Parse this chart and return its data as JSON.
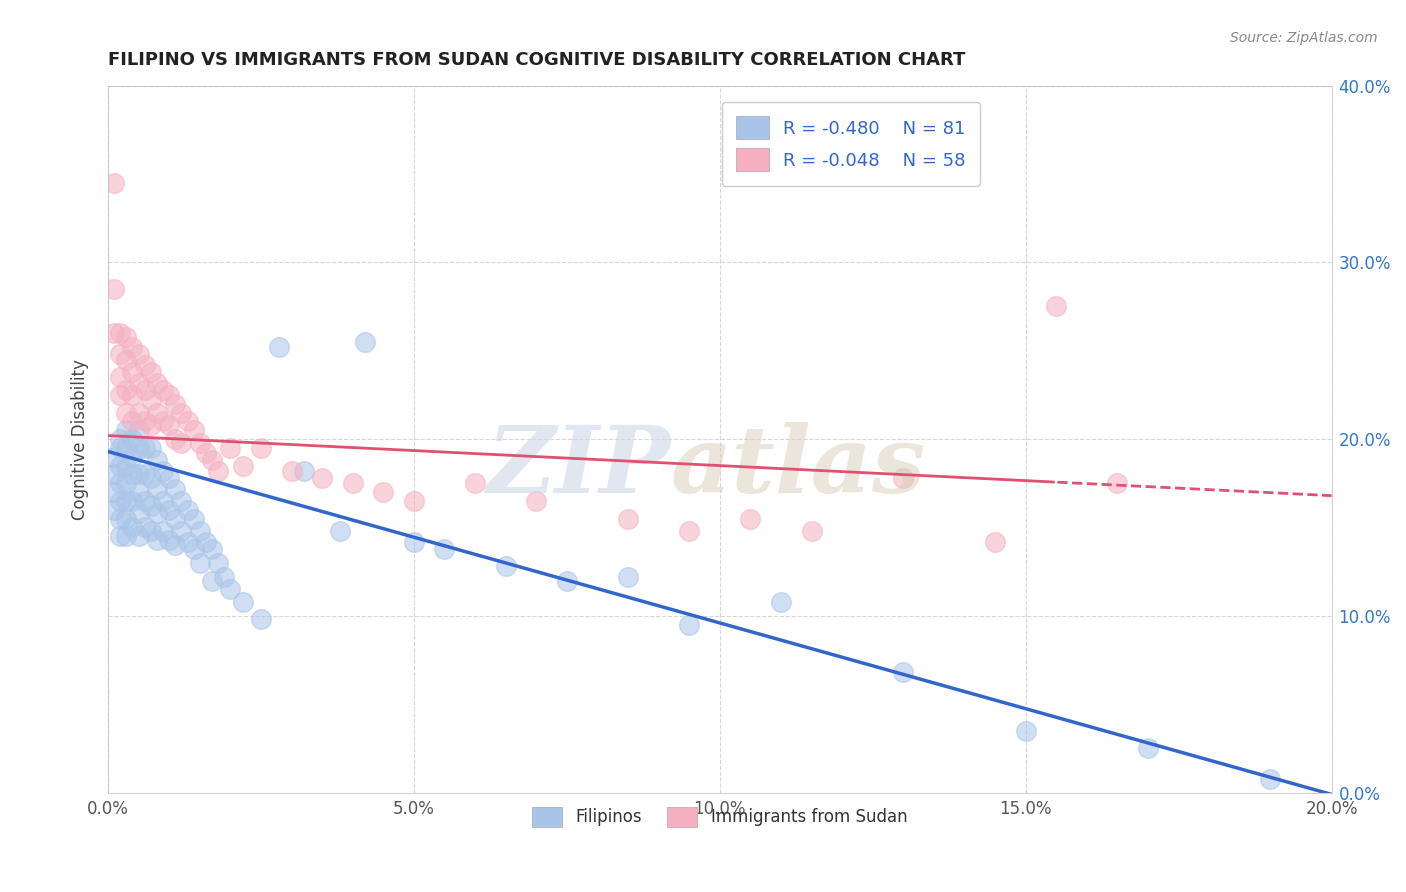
{
  "title": "FILIPINO VS IMMIGRANTS FROM SUDAN COGNITIVE DISABILITY CORRELATION CHART",
  "source": "Source: ZipAtlas.com",
  "ylabel": "Cognitive Disability",
  "xlim": [
    0.0,
    0.2
  ],
  "ylim": [
    0.0,
    0.4
  ],
  "xticks": [
    0.0,
    0.05,
    0.1,
    0.15,
    0.2
  ],
  "yticks": [
    0.0,
    0.1,
    0.2,
    0.3,
    0.4
  ],
  "xtick_labels": [
    "0.0%",
    "5.0%",
    "10.0%",
    "15.0%",
    "20.0%"
  ],
  "ytick_labels": [
    "0.0%",
    "10.0%",
    "20.0%",
    "30.0%",
    "40.0%"
  ],
  "blue_R": -0.48,
  "blue_N": 81,
  "pink_R": -0.048,
  "pink_N": 58,
  "blue_color": "#a8c4e8",
  "pink_color": "#f4b0c0",
  "blue_line_color": "#3366cc",
  "pink_line_color": "#e05070",
  "legend_label_blue": "Filipinos",
  "legend_label_pink": "Immigrants from Sudan",
  "blue_x": [
    0.001,
    0.001,
    0.001,
    0.001,
    0.002,
    0.002,
    0.002,
    0.002,
    0.002,
    0.002,
    0.002,
    0.003,
    0.003,
    0.003,
    0.003,
    0.003,
    0.003,
    0.003,
    0.004,
    0.004,
    0.004,
    0.004,
    0.004,
    0.005,
    0.005,
    0.005,
    0.005,
    0.005,
    0.005,
    0.006,
    0.006,
    0.006,
    0.006,
    0.007,
    0.007,
    0.007,
    0.007,
    0.008,
    0.008,
    0.008,
    0.008,
    0.009,
    0.009,
    0.009,
    0.01,
    0.01,
    0.01,
    0.011,
    0.011,
    0.011,
    0.012,
    0.012,
    0.013,
    0.013,
    0.014,
    0.014,
    0.015,
    0.015,
    0.016,
    0.017,
    0.017,
    0.018,
    0.019,
    0.02,
    0.022,
    0.025,
    0.028,
    0.032,
    0.038,
    0.042,
    0.05,
    0.055,
    0.065,
    0.075,
    0.085,
    0.095,
    0.11,
    0.13,
    0.15,
    0.17,
    0.19
  ],
  "blue_y": [
    0.19,
    0.18,
    0.17,
    0.16,
    0.2,
    0.195,
    0.185,
    0.175,
    0.165,
    0.155,
    0.145,
    0.205,
    0.195,
    0.185,
    0.175,
    0.165,
    0.155,
    0.145,
    0.2,
    0.19,
    0.18,
    0.165,
    0.15,
    0.205,
    0.195,
    0.18,
    0.17,
    0.158,
    0.145,
    0.195,
    0.18,
    0.165,
    0.15,
    0.195,
    0.178,
    0.162,
    0.148,
    0.188,
    0.172,
    0.158,
    0.143,
    0.182,
    0.165,
    0.148,
    0.178,
    0.16,
    0.143,
    0.172,
    0.155,
    0.14,
    0.165,
    0.148,
    0.16,
    0.142,
    0.155,
    0.138,
    0.148,
    0.13,
    0.142,
    0.138,
    0.12,
    0.13,
    0.122,
    0.115,
    0.108,
    0.098,
    0.252,
    0.182,
    0.148,
    0.255,
    0.142,
    0.138,
    0.128,
    0.12,
    0.122,
    0.095,
    0.108,
    0.068,
    0.035,
    0.025,
    0.008
  ],
  "pink_x": [
    0.001,
    0.001,
    0.001,
    0.002,
    0.002,
    0.002,
    0.002,
    0.003,
    0.003,
    0.003,
    0.003,
    0.004,
    0.004,
    0.004,
    0.004,
    0.005,
    0.005,
    0.005,
    0.006,
    0.006,
    0.006,
    0.007,
    0.007,
    0.007,
    0.008,
    0.008,
    0.009,
    0.009,
    0.01,
    0.01,
    0.011,
    0.011,
    0.012,
    0.012,
    0.013,
    0.014,
    0.015,
    0.016,
    0.017,
    0.018,
    0.02,
    0.022,
    0.025,
    0.03,
    0.035,
    0.04,
    0.045,
    0.05,
    0.06,
    0.07,
    0.085,
    0.095,
    0.105,
    0.115,
    0.13,
    0.145,
    0.155,
    0.165
  ],
  "pink_y": [
    0.345,
    0.285,
    0.26,
    0.26,
    0.248,
    0.235,
    0.225,
    0.258,
    0.245,
    0.228,
    0.215,
    0.252,
    0.238,
    0.225,
    0.21,
    0.248,
    0.232,
    0.215,
    0.242,
    0.228,
    0.21,
    0.238,
    0.222,
    0.208,
    0.232,
    0.215,
    0.228,
    0.21,
    0.225,
    0.208,
    0.22,
    0.2,
    0.215,
    0.198,
    0.21,
    0.205,
    0.198,
    0.192,
    0.188,
    0.182,
    0.195,
    0.185,
    0.195,
    0.182,
    0.178,
    0.175,
    0.17,
    0.165,
    0.175,
    0.165,
    0.155,
    0.148,
    0.155,
    0.148,
    0.178,
    0.142,
    0.275,
    0.175
  ]
}
